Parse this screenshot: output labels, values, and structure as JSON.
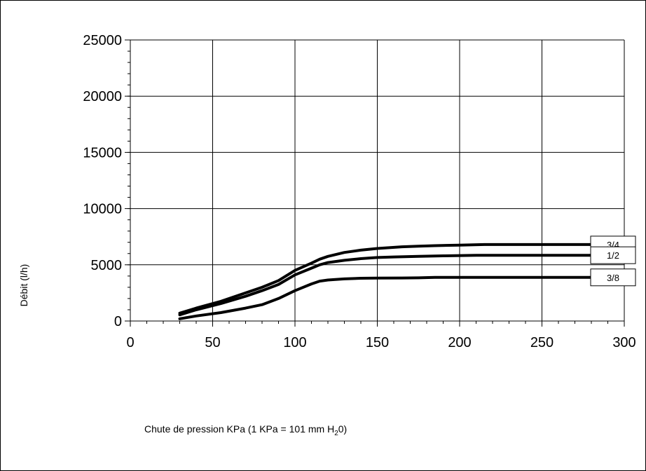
{
  "chart_data": {
    "type": "line",
    "title": "",
    "xlabel": "Chute de pression KPa (1 KPa = 101 mm H",
    "xlabel_sub": "2",
    "xlabel_end": "0)",
    "ylabel": "Débit (l/h)",
    "xlim": [
      0,
      300
    ],
    "ylim": [
      0,
      25000
    ],
    "xticks": [
      0,
      50,
      100,
      150,
      200,
      250,
      300
    ],
    "yticks": [
      0,
      5000,
      10000,
      15000,
      20000,
      25000
    ],
    "grid": true,
    "line_color": "#000000",
    "series": [
      {
        "name": "3/4",
        "x": [
          30,
          40,
          55,
          70,
          80,
          90,
          100,
          110,
          115,
          120,
          130,
          140,
          150,
          165,
          175,
          185,
          200,
          215,
          240,
          260,
          280
        ],
        "y": [
          700,
          1150,
          1750,
          2500,
          3000,
          3600,
          4500,
          5150,
          5500,
          5750,
          6100,
          6300,
          6450,
          6600,
          6650,
          6700,
          6750,
          6800,
          6800,
          6800,
          6800
        ]
      },
      {
        "name": "1/2",
        "x": [
          30,
          40,
          55,
          70,
          80,
          90,
          100,
          110,
          115,
          120,
          130,
          140,
          150,
          160,
          175,
          190,
          210,
          240,
          260,
          280
        ],
        "y": [
          550,
          1000,
          1550,
          2200,
          2700,
          3250,
          4100,
          4700,
          5000,
          5200,
          5400,
          5550,
          5650,
          5700,
          5750,
          5800,
          5850,
          5850,
          5850,
          5850
        ]
      },
      {
        "name": "3/8",
        "x": [
          30,
          40,
          55,
          70,
          80,
          90,
          100,
          110,
          115,
          120,
          130,
          140,
          150,
          165,
          175,
          185,
          200,
          240,
          260,
          280
        ],
        "y": [
          200,
          450,
          750,
          1150,
          1450,
          2000,
          2700,
          3300,
          3550,
          3650,
          3750,
          3800,
          3820,
          3830,
          3840,
          3880,
          3880,
          3880,
          3880,
          3880
        ]
      }
    ]
  }
}
